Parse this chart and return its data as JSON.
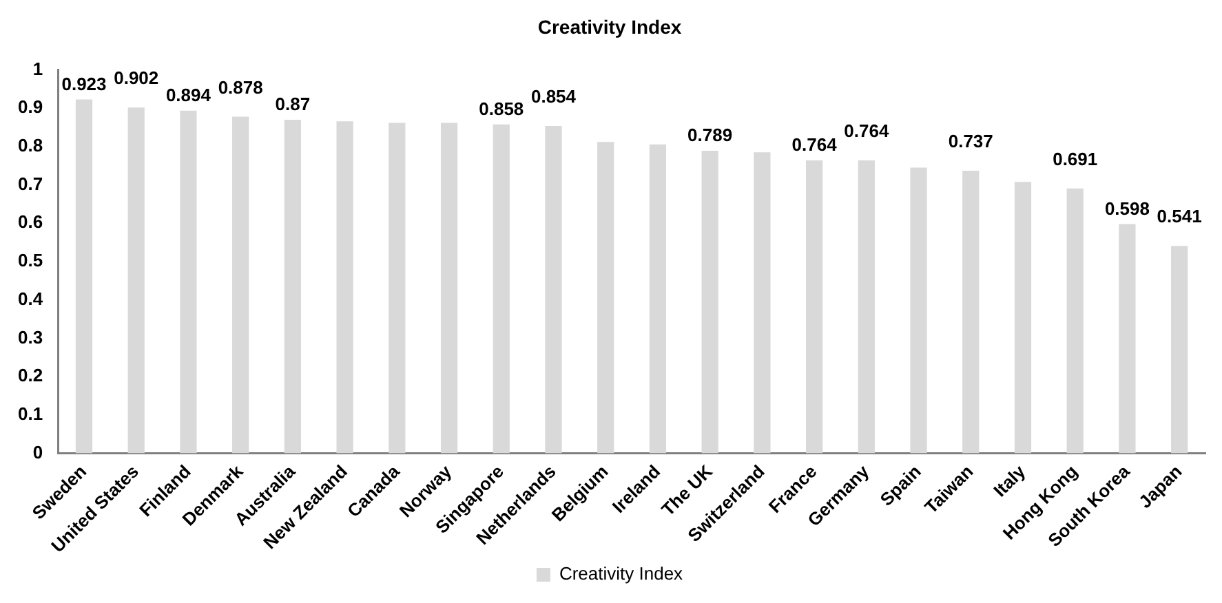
{
  "chart_data": {
    "type": "bar",
    "title": "Creativity Index",
    "categories": [
      "Sweden",
      "United States",
      "Finland",
      "Denmark",
      "Australia",
      "New Zealand",
      "Canada",
      "Norway",
      "Singapore",
      "Netherlands",
      "Belgium",
      "Ireland",
      "The UK",
      "Switzerland",
      "France",
      "Germany",
      "Spain",
      "Taiwan",
      "Italy",
      "Hong Kong",
      "South Korea",
      "Japan"
    ],
    "series": [
      {
        "name": "Creativity Index",
        "color": "#d9d9d9",
        "values": [
          0.923,
          0.902,
          0.894,
          0.878,
          0.87,
          0.866,
          0.862,
          0.862,
          0.858,
          0.854,
          0.812,
          0.806,
          0.789,
          0.785,
          0.764,
          0.764,
          0.745,
          0.737,
          0.708,
          0.691,
          0.598,
          0.541
        ],
        "value_labels": [
          "0.923",
          "0.902",
          "0.894",
          "0.878",
          "0.87",
          null,
          null,
          null,
          "0.858",
          "0.854",
          null,
          null,
          "0.789",
          null,
          "0.764",
          "0.764",
          null,
          "0.737",
          null,
          "0.691",
          "0.598",
          "0.541"
        ]
      }
    ],
    "ylim": [
      0,
      1
    ],
    "yticks": [
      0,
      0.1,
      0.2,
      0.3,
      0.4,
      0.5,
      0.6,
      0.7,
      0.8,
      0.9,
      1
    ],
    "grid": false,
    "legend": "bottom"
  }
}
